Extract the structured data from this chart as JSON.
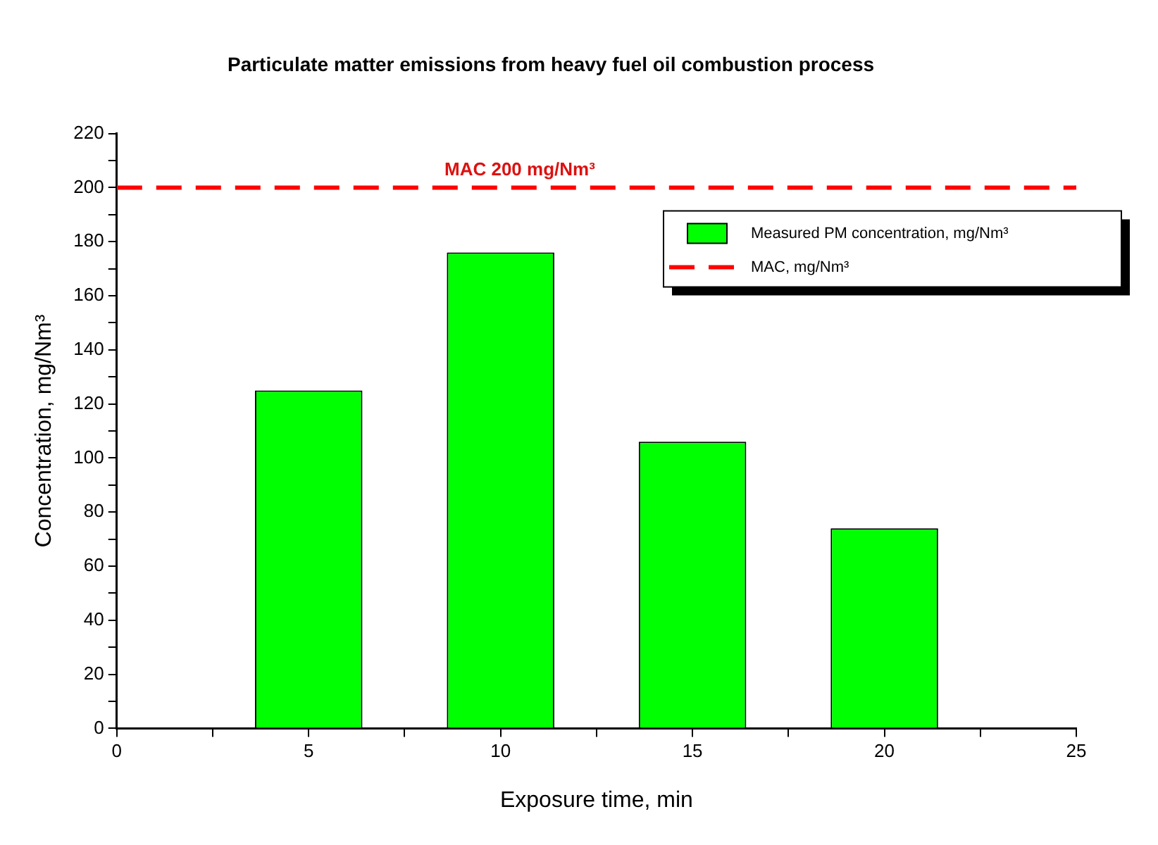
{
  "chart_data": {
    "type": "bar",
    "title": "Particulate matter emissions from heavy fuel oil combustion process",
    "xlabel": "Exposure time, min",
    "ylabel": "Concentration, mg/Nm³",
    "x": [
      5,
      10,
      15,
      20
    ],
    "series": [
      {
        "name": "Measured PM concentration, mg/Nm³",
        "color": "#00ff00",
        "values": [
          125,
          176,
          106,
          74
        ]
      },
      {
        "name": "MAC, mg/Nm³",
        "type": "line",
        "color": "#ff0000",
        "x": [
          0,
          25
        ],
        "values": [
          200,
          200
        ],
        "line_style": "dashed",
        "marker": "none"
      }
    ],
    "annotations": [
      {
        "text": "MAC 200 mg/Nm³",
        "x": 10.5,
        "y": 200
      }
    ],
    "xlim": [
      0,
      25
    ],
    "xticks": [
      0,
      {
        "value": 2.5,
        "label": null
      },
      5,
      {
        "value": 7.5,
        "label": null
      },
      10,
      {
        "value": 12.5,
        "label": null
      },
      15,
      {
        "value": 17.5,
        "label": null
      },
      20,
      {
        "value": 22.5,
        "label": null
      },
      25
    ],
    "ylim": [
      0,
      220
    ],
    "yticks": [
      0,
      {
        "value": 10,
        "label": null
      },
      20,
      {
        "value": 30,
        "label": null
      },
      40,
      {
        "value": 50,
        "label": null
      },
      60,
      {
        "value": 70,
        "label": null
      },
      80,
      {
        "value": 90,
        "label": null
      },
      100,
      {
        "value": 110,
        "label": null
      },
      120,
      {
        "value": 130,
        "label": null
      },
      140,
      {
        "value": 150,
        "label": null
      },
      160,
      {
        "value": 170,
        "label": null
      },
      180,
      {
        "value": 190,
        "label": null
      },
      200,
      {
        "value": 210,
        "label": null
      },
      220
    ],
    "legend": "top right"
  }
}
